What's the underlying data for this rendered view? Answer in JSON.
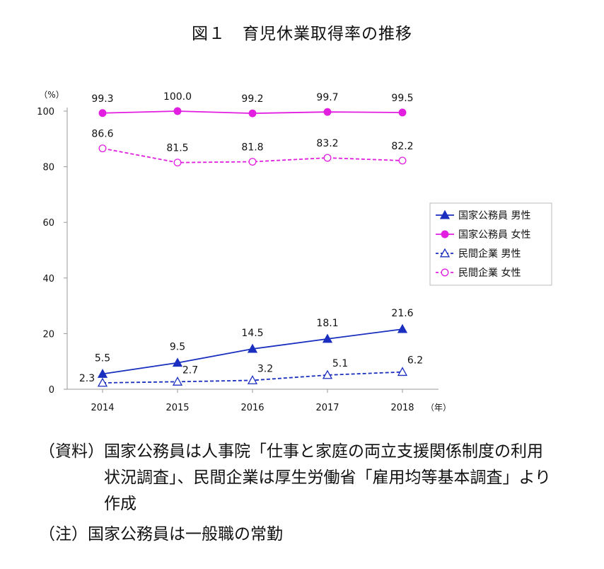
{
  "figure": {
    "title": "図１　育児休業取得率の推移"
  },
  "chart_data": {
    "type": "line",
    "x": [
      2014,
      2015,
      2016,
      2017,
      2018
    ],
    "xlabel_unit": "（年）",
    "ylabel_unit": "（%）",
    "ylim": [
      0,
      100
    ],
    "yticks": [
      0,
      20,
      40,
      60,
      80,
      100
    ],
    "grid": false,
    "legend_position": "right",
    "series": [
      {
        "name": "国家公務員 男性",
        "values": [
          5.5,
          9.5,
          14.5,
          18.1,
          21.6
        ],
        "color": "#1a2fbf",
        "dash": false,
        "marker": "triangle-filled"
      },
      {
        "name": "国家公務員 女性",
        "values": [
          99.3,
          100.0,
          99.2,
          99.7,
          99.5
        ],
        "color": "#e21ee0",
        "dash": false,
        "marker": "circle-filled"
      },
      {
        "name": "民間企業 男性",
        "values": [
          2.3,
          2.7,
          3.2,
          5.1,
          6.2
        ],
        "color": "#1a2fbf",
        "dash": true,
        "marker": "triangle-open"
      },
      {
        "name": "民間企業 女性",
        "values": [
          86.6,
          81.5,
          81.8,
          83.2,
          82.2
        ],
        "color": "#e21ee0",
        "dash": true,
        "marker": "circle-open"
      }
    ]
  },
  "notes": {
    "source_label": "（資料）",
    "source_text": "国家公務員は人事院「仕事と家庭の両立支援関係制度の利用状況調査」、民間企業は厚生労働省「雇用均等基本調査」より作成",
    "note_label": "（注）",
    "note_text": "国家公務員は一般職の常勤"
  }
}
